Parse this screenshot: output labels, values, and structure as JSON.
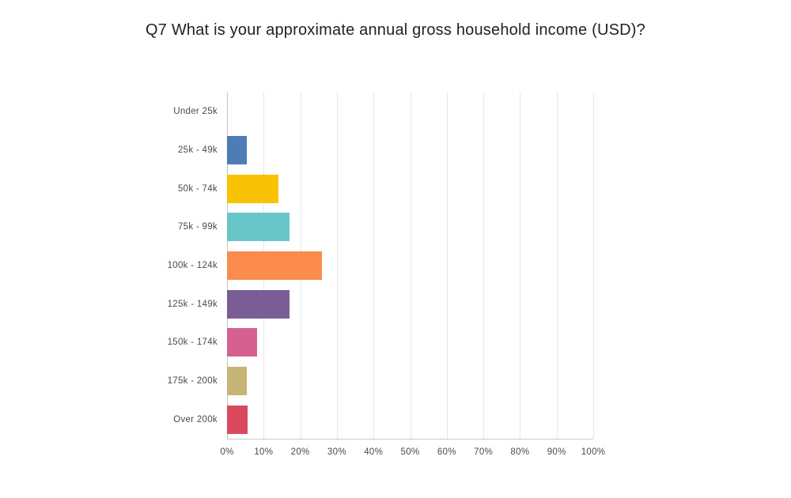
{
  "page": {
    "background": "#ffffff"
  },
  "chart_data": {
    "type": "bar",
    "orientation": "horizontal",
    "title": "Q7 What is your approximate annual gross household income (USD)?",
    "categories": [
      "Under 25k",
      "25k - 49k",
      "50k - 74k",
      "75k - 99k",
      "100k - 124k",
      "125k - 149k",
      "150k - 174k",
      "175k - 200k",
      "Over 200k"
    ],
    "values": [
      0,
      5.4,
      14.0,
      17.1,
      25.9,
      17.1,
      8.2,
      5.4,
      5.6
    ],
    "value_unit": "%",
    "bar_colors": [
      null,
      "#4e7cb5",
      "#f8c202",
      "#69c6c8",
      "#fc8c4d",
      "#7a5c96",
      "#d5608f",
      "#c4b476",
      "#d94a5e"
    ],
    "x_ticks": [
      "0%",
      "10%",
      "20%",
      "30%",
      "40%",
      "50%",
      "60%",
      "70%",
      "80%",
      "90%",
      "100%"
    ],
    "xlim": [
      0,
      100
    ],
    "grid": "vertical",
    "legend": "none",
    "xlabel": "",
    "ylabel": "",
    "colors": {
      "title_text": "#222222",
      "axis_text": "#4a4a4a",
      "gridline": "#e7e7e7",
      "zero_line": "#c3c3c3",
      "axis_line": "#c8c8c8"
    }
  }
}
